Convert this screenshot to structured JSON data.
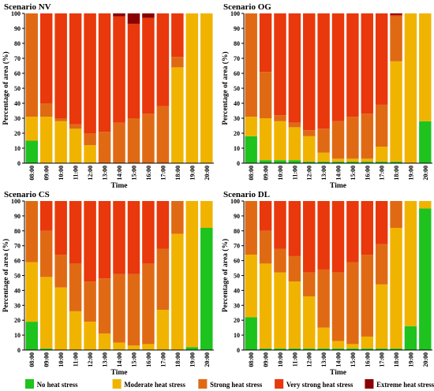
{
  "legend": [
    {
      "name": "No heat stress",
      "color": "#1ec31e"
    },
    {
      "name": "Moderate heat stress",
      "color": "#f0b400"
    },
    {
      "name": "Strong heat stress",
      "color": "#e06a14"
    },
    {
      "name": "Very strong heat stress",
      "color": "#e8380c"
    },
    {
      "name": "Extreme heat stress",
      "color": "#8b0000"
    }
  ],
  "chart_data": [
    {
      "type": "bar",
      "stacked": true,
      "title": "Scenario NV",
      "xlabel": "Time",
      "ylabel": "Percentage of area (%)",
      "ylim": [
        0,
        100
      ],
      "yticks": [
        0,
        10,
        20,
        30,
        40,
        50,
        60,
        70,
        80,
        90,
        100
      ],
      "categories": [
        "08:00",
        "09:00",
        "10:00",
        "11:00",
        "12:00",
        "13:00",
        "14:00",
        "15:00",
        "16:00",
        "17:00",
        "18:00",
        "19:00",
        "20:00"
      ],
      "series": [
        {
          "name": "No heat stress",
          "values": [
            15,
            0,
            0,
            0,
            0,
            0,
            0,
            0,
            0,
            0,
            0,
            0,
            0
          ]
        },
        {
          "name": "Moderate heat stress",
          "values": [
            16,
            31,
            28,
            23,
            12,
            0,
            0,
            0,
            0,
            0,
            64,
            100,
            100
          ]
        },
        {
          "name": "Strong heat stress",
          "values": [
            69,
            9,
            2,
            3,
            8,
            21,
            27,
            30,
            33,
            38,
            7,
            0,
            0
          ]
        },
        {
          "name": "Very strong heat stress",
          "values": [
            0,
            60,
            70,
            74,
            80,
            79,
            71,
            63,
            64,
            62,
            29,
            0,
            0
          ]
        },
        {
          "name": "Extreme heat stress",
          "values": [
            0,
            0,
            0,
            0,
            0,
            0,
            2,
            7,
            3,
            0,
            0,
            0,
            0
          ]
        }
      ]
    },
    {
      "type": "bar",
      "stacked": true,
      "title": "Scenario OG",
      "xlabel": "Time",
      "ylabel": "Percentage of area (%)",
      "ylim": [
        0,
        100
      ],
      "yticks": [
        0,
        10,
        20,
        30,
        40,
        50,
        60,
        70,
        80,
        90,
        100
      ],
      "categories": [
        "08:00",
        "09:00",
        "10:00",
        "11:00",
        "12:00",
        "13:00",
        "14:00",
        "15:00",
        "16:00",
        "17:00",
        "18:00",
        "19:00",
        "20:00"
      ],
      "series": [
        {
          "name": "No heat stress",
          "values": [
            18,
            2,
            2,
            2,
            1,
            1,
            1,
            1,
            1,
            1,
            1,
            0,
            28
          ]
        },
        {
          "name": "Moderate heat stress",
          "values": [
            13,
            28,
            26,
            22,
            17,
            6,
            2,
            2,
            2,
            10,
            67,
            100,
            72
          ]
        },
        {
          "name": "Strong heat stress",
          "values": [
            69,
            31,
            4,
            3,
            4,
            16,
            25,
            28,
            30,
            28,
            30,
            0,
            0
          ]
        },
        {
          "name": "Very strong heat stress",
          "values": [
            0,
            39,
            68,
            73,
            78,
            77,
            72,
            69,
            67,
            61,
            1,
            0,
            0
          ]
        },
        {
          "name": "Extreme heat stress",
          "values": [
            0,
            0,
            0,
            0,
            0,
            0,
            0,
            0,
            0,
            0,
            1,
            0,
            0
          ]
        }
      ]
    },
    {
      "type": "bar",
      "stacked": true,
      "title": "Scenario CS",
      "xlabel": "Time",
      "ylabel": "Percentage of area (%)",
      "ylim": [
        0,
        100
      ],
      "yticks": [
        0,
        10,
        20,
        30,
        40,
        50,
        60,
        70,
        80,
        90,
        100
      ],
      "categories": [
        "08:00",
        "09:00",
        "10:00",
        "11:00",
        "12:00",
        "13:00",
        "14:00",
        "15:00",
        "16:00",
        "17:00",
        "18:00",
        "19:00",
        "20:00"
      ],
      "series": [
        {
          "name": "No heat stress",
          "values": [
            19,
            1,
            0,
            0,
            0,
            0,
            0,
            0,
            0,
            0,
            0,
            2,
            82
          ]
        },
        {
          "name": "Moderate heat stress",
          "values": [
            40,
            48,
            42,
            26,
            19,
            11,
            5,
            3,
            4,
            27,
            78,
            98,
            18
          ]
        },
        {
          "name": "Strong heat stress",
          "values": [
            41,
            31,
            22,
            32,
            27,
            37,
            46,
            48,
            54,
            41,
            22,
            0,
            0
          ]
        },
        {
          "name": "Very strong heat stress",
          "values": [
            0,
            20,
            36,
            42,
            54,
            52,
            49,
            49,
            42,
            32,
            0,
            0,
            0
          ]
        },
        {
          "name": "Extreme heat stress",
          "values": [
            0,
            0,
            0,
            0,
            0,
            0,
            0,
            0,
            0,
            0,
            0,
            0,
            0
          ]
        }
      ]
    },
    {
      "type": "bar",
      "stacked": true,
      "title": "Scenario DL",
      "xlabel": "Time",
      "ylabel": "Percentage of area (%)",
      "ylim": [
        0,
        100
      ],
      "yticks": [
        0,
        10,
        20,
        30,
        40,
        50,
        60,
        70,
        80,
        90,
        100
      ],
      "categories": [
        "08:00",
        "09:00",
        "10:00",
        "11:00",
        "12:00",
        "13:00",
        "14:00",
        "15:00",
        "16:00",
        "17:00",
        "18:00",
        "19:00",
        "20:00"
      ],
      "series": [
        {
          "name": "No heat stress",
          "values": [
            22,
            1,
            1,
            1,
            1,
            1,
            1,
            1,
            1,
            1,
            1,
            16,
            95
          ]
        },
        {
          "name": "Moderate heat stress",
          "values": [
            42,
            57,
            51,
            45,
            35,
            14,
            5,
            3,
            8,
            43,
            81,
            84,
            5
          ]
        },
        {
          "name": "Strong heat stress",
          "values": [
            36,
            22,
            16,
            17,
            16,
            39,
            46,
            55,
            55,
            27,
            18,
            0,
            0
          ]
        },
        {
          "name": "Very strong heat stress",
          "values": [
            0,
            20,
            32,
            37,
            48,
            46,
            48,
            41,
            36,
            29,
            0,
            0,
            0
          ]
        },
        {
          "name": "Extreme heat stress",
          "values": [
            0,
            0,
            0,
            0,
            0,
            0,
            0,
            0,
            0,
            0,
            0,
            0,
            0
          ]
        }
      ]
    }
  ]
}
